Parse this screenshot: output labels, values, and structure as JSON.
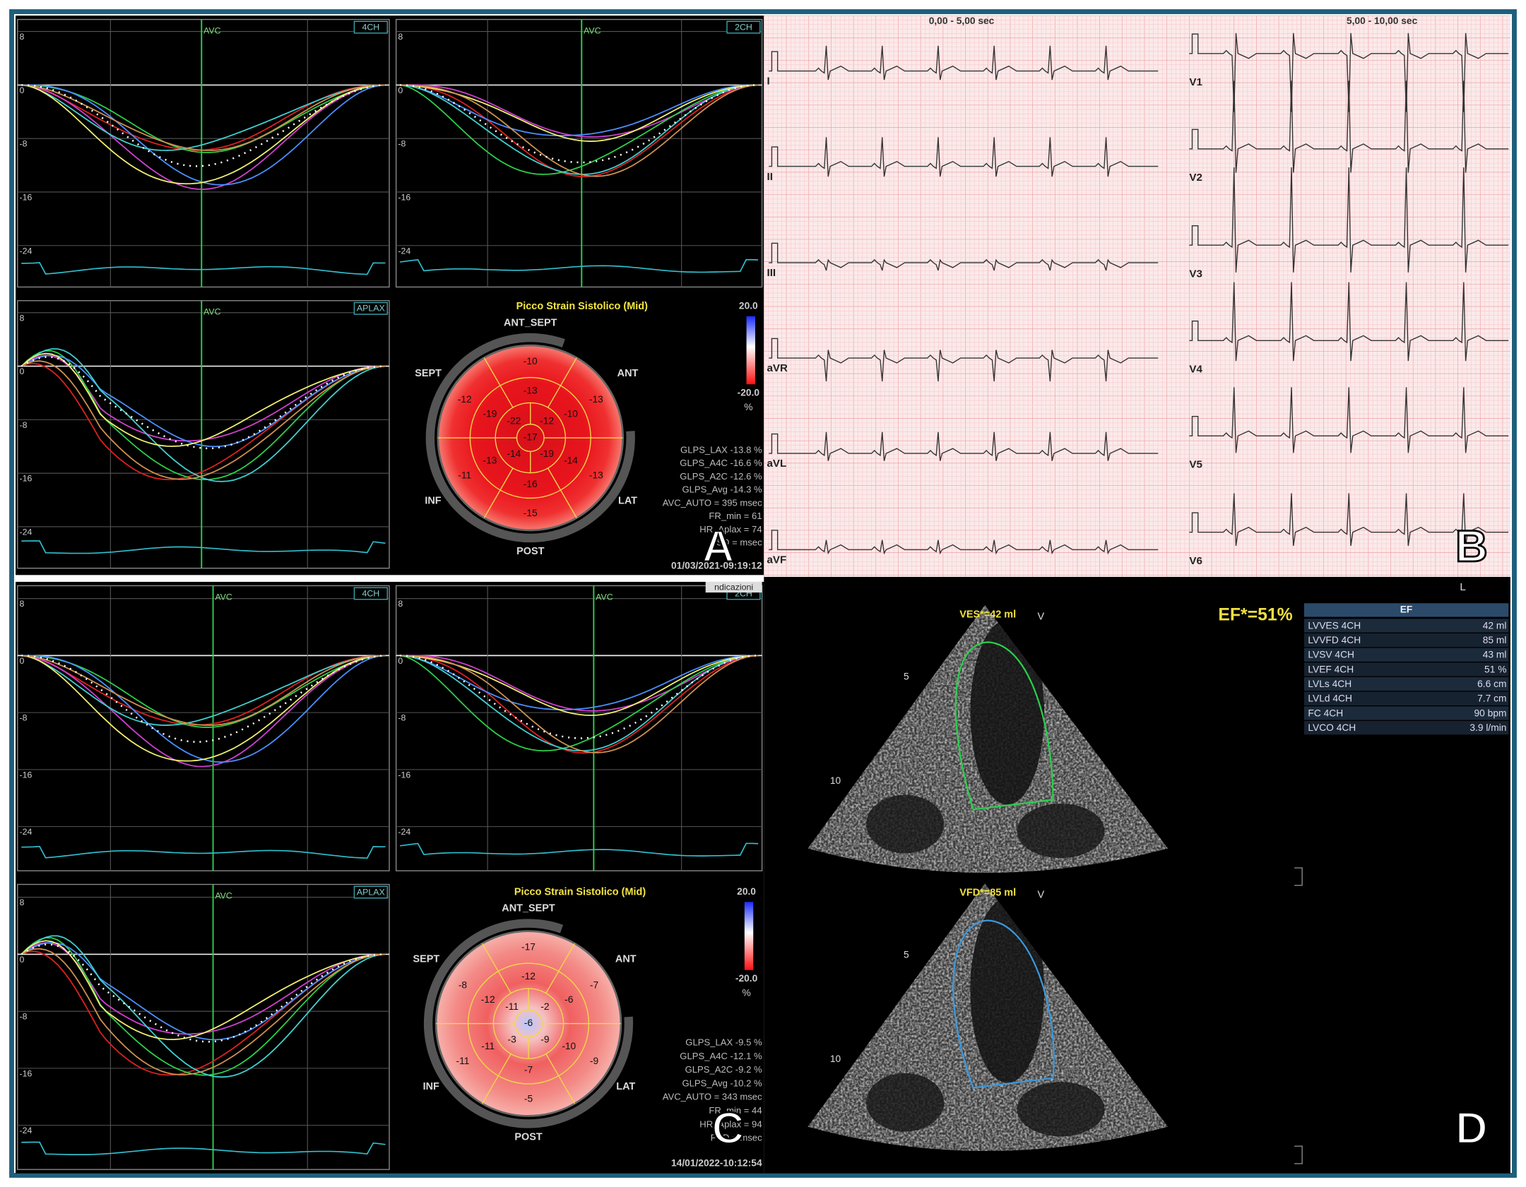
{
  "panel_a": {
    "label": "A",
    "plots": [
      {
        "view": "4CH",
        "event": "AVC",
        "yticks": [
          "8",
          "0",
          "-8",
          "-16",
          "-24"
        ]
      },
      {
        "view": "2CH",
        "event": "AVC",
        "yticks": [
          "8",
          "0",
          "-8",
          "-16",
          "-24"
        ]
      },
      {
        "view": "APLAX",
        "event": "AVC",
        "yticks": [
          "8",
          "0",
          "-8",
          "-16",
          "-24"
        ]
      }
    ],
    "bullseye": {
      "title": "Picco Strain Sistolico (Mid)",
      "walls": [
        "ANT_SEPT",
        "ANT",
        "LAT",
        "POST",
        "INF",
        "SEPT"
      ],
      "segments": [
        "-10",
        "-13",
        "-13",
        "-15",
        "-11",
        "-12",
        "-13",
        "-10",
        "-14",
        "-16",
        "-13",
        "-19",
        "-12",
        "-19",
        "-14",
        "-22",
        "-17"
      ],
      "scale": [
        "20.0",
        "-20.0",
        "%"
      ]
    },
    "stats": [
      "GLPS_LAX -13.8 %",
      "GLPS_A4C -16.6 %",
      "GLPS_A2C -12.6 %",
      "GLPS_Avg -14.3 %",
      "AVC_AUTO = 395 msec",
      "FR_min = 61",
      "HR_Aplax = 74",
      "PSD = msec"
    ],
    "timestamp": "01/03/2021-09:19:12"
  },
  "panel_b": {
    "label": "B",
    "windows": [
      "0,00 - 5,00 sec",
      "5,00 - 10,00 sec"
    ],
    "limb_leads": [
      "I",
      "II",
      "III",
      "aVR",
      "aVL",
      "aVF"
    ],
    "chest_leads": [
      "V1",
      "V2",
      "V3",
      "V4",
      "V5",
      "V6"
    ],
    "footer": "L"
  },
  "panel_c": {
    "label": "C",
    "note": "ndicazioni",
    "plots": [
      {
        "view": "4CH",
        "event": "AVC",
        "yticks": [
          "8",
          "0",
          "-8",
          "-16",
          "-24"
        ]
      },
      {
        "view": "2CH",
        "event": "AVC",
        "yticks": [
          "8",
          "0",
          "-8",
          "-16",
          "-24"
        ]
      },
      {
        "view": "APLAX",
        "event": "AVC",
        "yticks": [
          "8",
          "0",
          "-8",
          "-16",
          "-24"
        ]
      }
    ],
    "bullseye": {
      "title": "Picco Strain Sistolico (Mid)",
      "walls": [
        "ANT_SEPT",
        "ANT",
        "LAT",
        "POST",
        "INF",
        "SEPT"
      ],
      "segments": [
        "-17",
        "-7",
        "-9",
        "-5",
        "-11",
        "-8",
        "-12",
        "-6",
        "-10",
        "-7",
        "-11",
        "-12",
        "-2",
        "-9",
        "-3",
        "-11",
        "-6"
      ],
      "scale": [
        "20.0",
        "-20.0",
        "%"
      ]
    },
    "stats": [
      "GLPS_LAX -9.5 %",
      "GLPS_A4C -12.1 %",
      "GLPS_A2C -9.2 %",
      "GLPS_Avg -10.2 %",
      "AVC_AUTO = 343 msec",
      "FR_min = 44",
      "HR_Aplax = 94",
      "PSD = msec"
    ],
    "timestamp": "14/01/2022-10:12:54"
  },
  "panel_d": {
    "label": "D",
    "ef": "EF*=51%",
    "frames": [
      {
        "volume": "VES*=42 ml",
        "marker": "V",
        "depths": [
          "5",
          "10"
        ]
      },
      {
        "volume": "VFD*=85 ml",
        "marker": "V",
        "depths": [
          "5",
          "10"
        ]
      }
    ],
    "table": {
      "header": "EF",
      "rows": [
        [
          "LVVES 4CH",
          "42 ml"
        ],
        [
          "LVVFD 4CH",
          "85 ml"
        ],
        [
          "LVSV 4CH",
          "43 ml"
        ],
        [
          "LVEF 4CH",
          "51 %"
        ],
        [
          "LVLs 4CH",
          "6.6 cm"
        ],
        [
          "LVLd 4CH",
          "7.7 cm"
        ],
        [
          "FC 4CH",
          "90 bpm"
        ],
        [
          "LVCO 4CH",
          "3.9 l/min"
        ]
      ]
    }
  }
}
